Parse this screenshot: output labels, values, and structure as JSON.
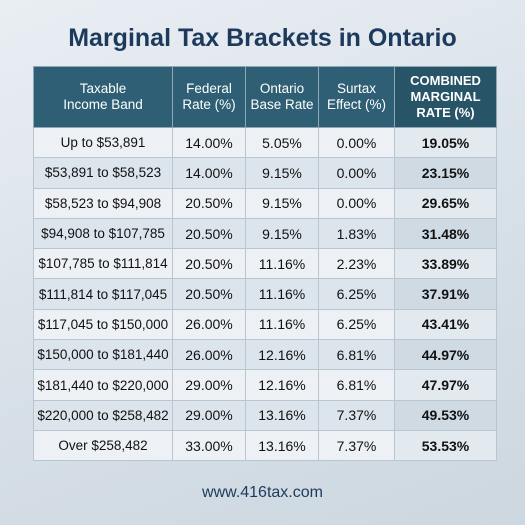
{
  "title": "Marginal Tax Brackets in Ontario",
  "table": {
    "headers": [
      "Taxable\nIncome Band",
      "Federal\nRate (%)",
      "Ontario\nBase Rate",
      "Surtax\nEffect (%)",
      "COMBINED\nMARGINAL\nRATE (%)"
    ],
    "rows": [
      [
        "Up to $53,891",
        "14.00%",
        "5.05%",
        "0.00%",
        "19.05%"
      ],
      [
        "$53,891 to $58,523",
        "14.00%",
        "9.15%",
        "0.00%",
        "23.15%"
      ],
      [
        "$58,523 to $94,908",
        "20.50%",
        "9.15%",
        "0.00%",
        "29.65%"
      ],
      [
        "$94,908 to $107,785",
        "20.50%",
        "9.15%",
        "1.83%",
        "31.48%"
      ],
      [
        "$107,785 to $111,814",
        "20.50%",
        "11.16%",
        "2.23%",
        "33.89%"
      ],
      [
        "$111,814 to $117,045",
        "20.50%",
        "11.16%",
        "6.25%",
        "37.91%"
      ],
      [
        "$117,045 to $150,000",
        "26.00%",
        "11.16%",
        "6.25%",
        "43.41%"
      ],
      [
        "$150,000 to $181,440",
        "26.00%",
        "12.16%",
        "6.81%",
        "44.97%"
      ],
      [
        "$181,440 to $220,000",
        "29.00%",
        "12.16%",
        "6.81%",
        "47.97%"
      ],
      [
        "$220,000 to $258,482",
        "29.00%",
        "13.16%",
        "7.37%",
        "49.53%"
      ],
      [
        "Over $258,482",
        "33.00%",
        "13.16%",
        "7.37%",
        "53.53%"
      ]
    ]
  },
  "footer": "www.416tax.com"
}
